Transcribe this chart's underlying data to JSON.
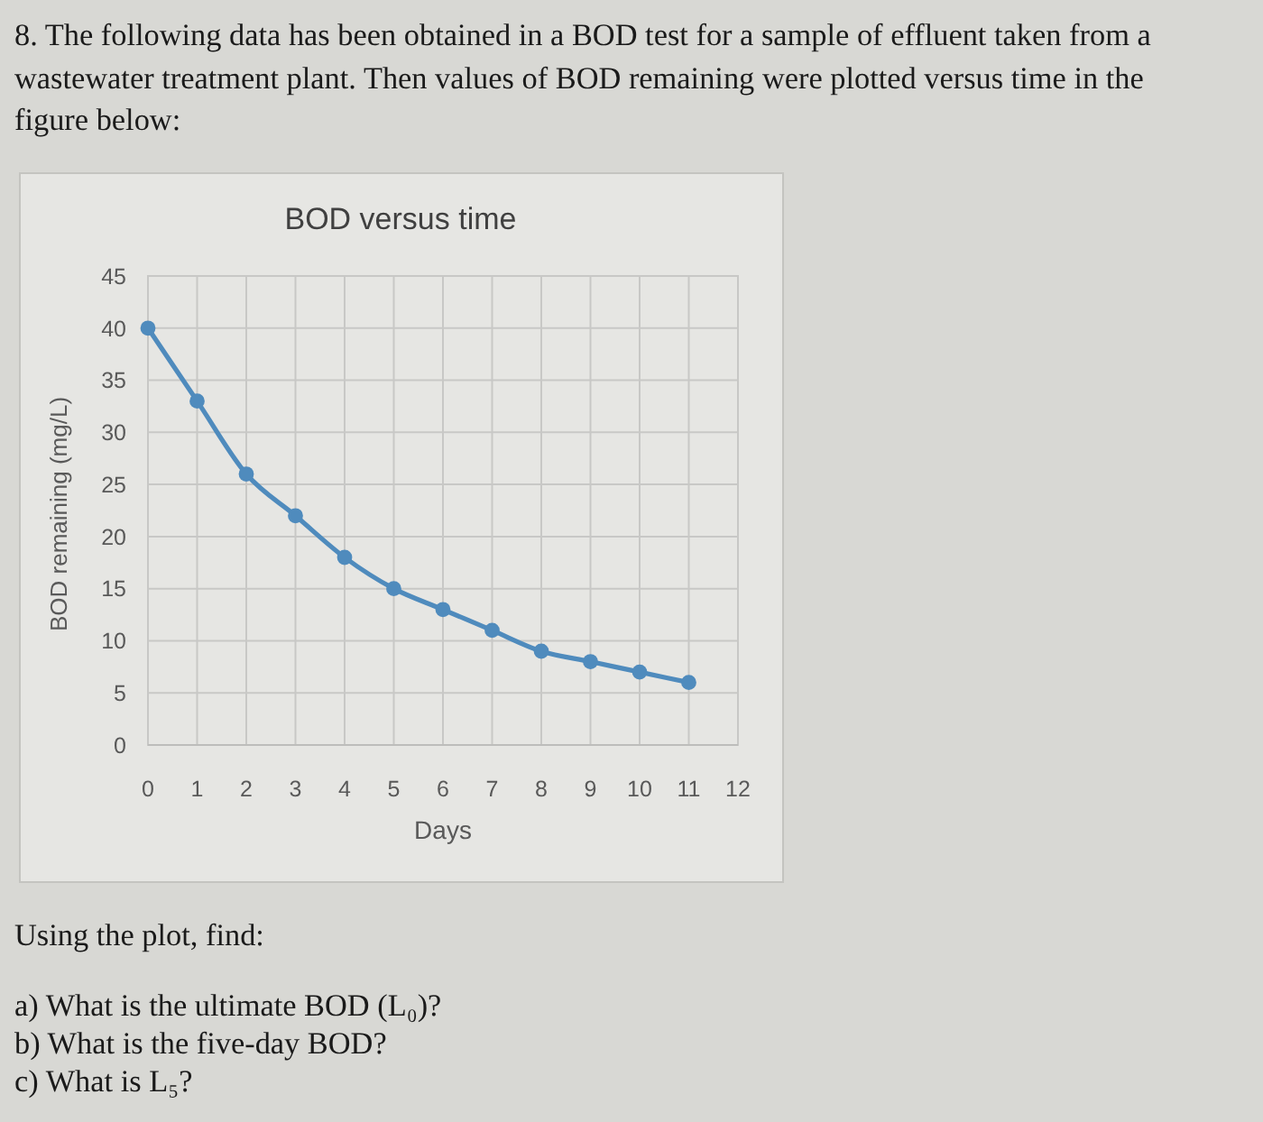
{
  "chart_data": {
    "type": "line",
    "title": "BOD versus time",
    "xlabel": "Days",
    "ylabel": "BOD remaining (mg/L)",
    "x": [
      0,
      1,
      2,
      3,
      4,
      5,
      6,
      7,
      8,
      9,
      10,
      11
    ],
    "series": [
      {
        "color": "#4f8bbd",
        "values": [
          40,
          33,
          26,
          22,
          18,
          15,
          13,
          11,
          9,
          8,
          7,
          6
        ]
      }
    ],
    "xlim": [
      0,
      12
    ],
    "xticks": [
      0,
      1,
      2,
      3,
      4,
      5,
      6,
      7,
      8,
      9,
      10,
      11,
      12
    ],
    "ylim": [
      0,
      45
    ],
    "yticks": [
      0,
      5,
      10,
      15,
      20,
      25,
      30,
      35,
      40,
      45
    ],
    "grid": true,
    "marker": "circle",
    "annotations": [
      "8. The following data has been obtained in a BOD test for a sample of effluent taken from a",
      "wastewater treatment plant. Then values of BOD remaining were plotted versus time in the",
      "figure below:",
      "Using the plot, find:",
      "a) What is the ultimate BOD (L₀)?",
      "b) What is the five-day BOD?",
      "c) What is L₅?"
    ]
  }
}
